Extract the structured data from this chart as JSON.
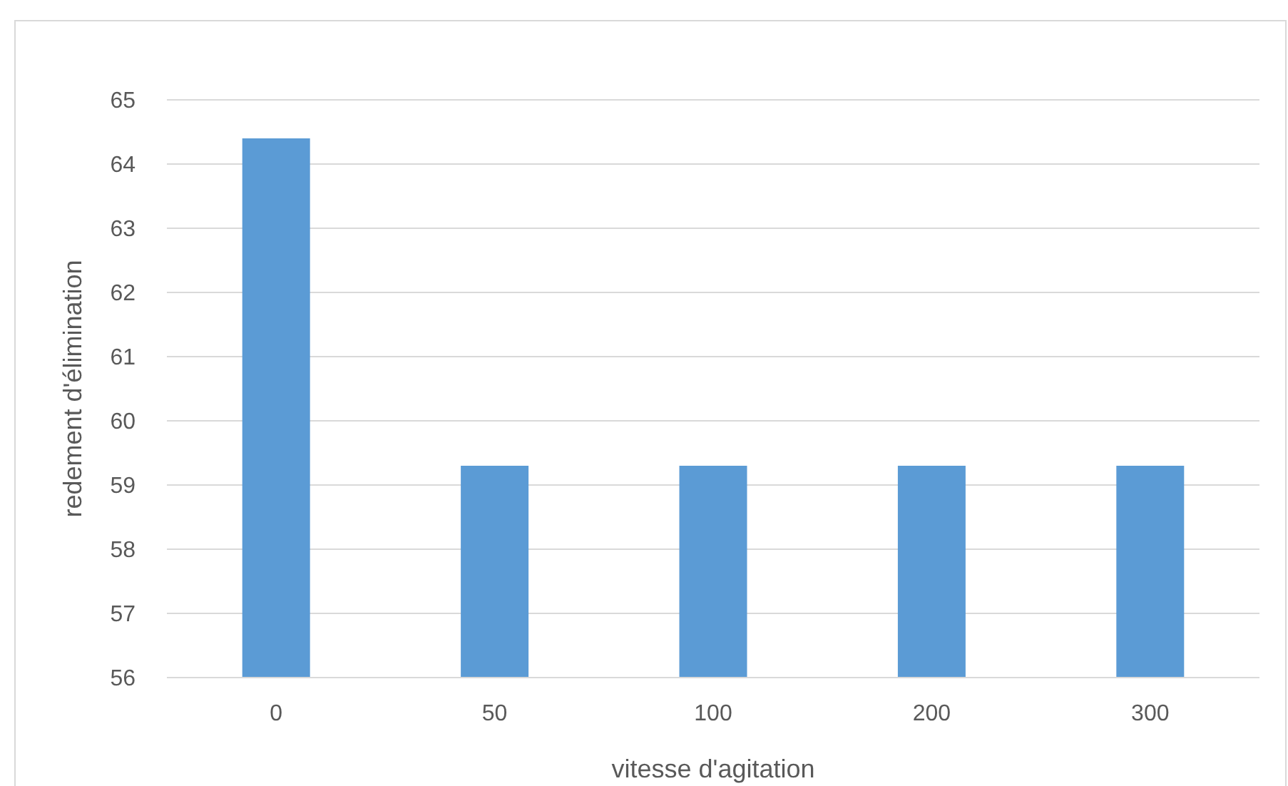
{
  "chart_data": {
    "type": "bar",
    "xlabel": "vitesse d'agitation",
    "ylabel": "redement d'élimination",
    "categories": [
      "0",
      "50",
      "100",
      "200",
      "300"
    ],
    "values": [
      64.4,
      59.3,
      59.3,
      59.3,
      59.3
    ],
    "color": "#5b9bd5",
    "ylim": [
      56,
      65
    ],
    "yticks": [
      56,
      57,
      58,
      59,
      60,
      61,
      62,
      63,
      64,
      65
    ],
    "grid": "y"
  }
}
